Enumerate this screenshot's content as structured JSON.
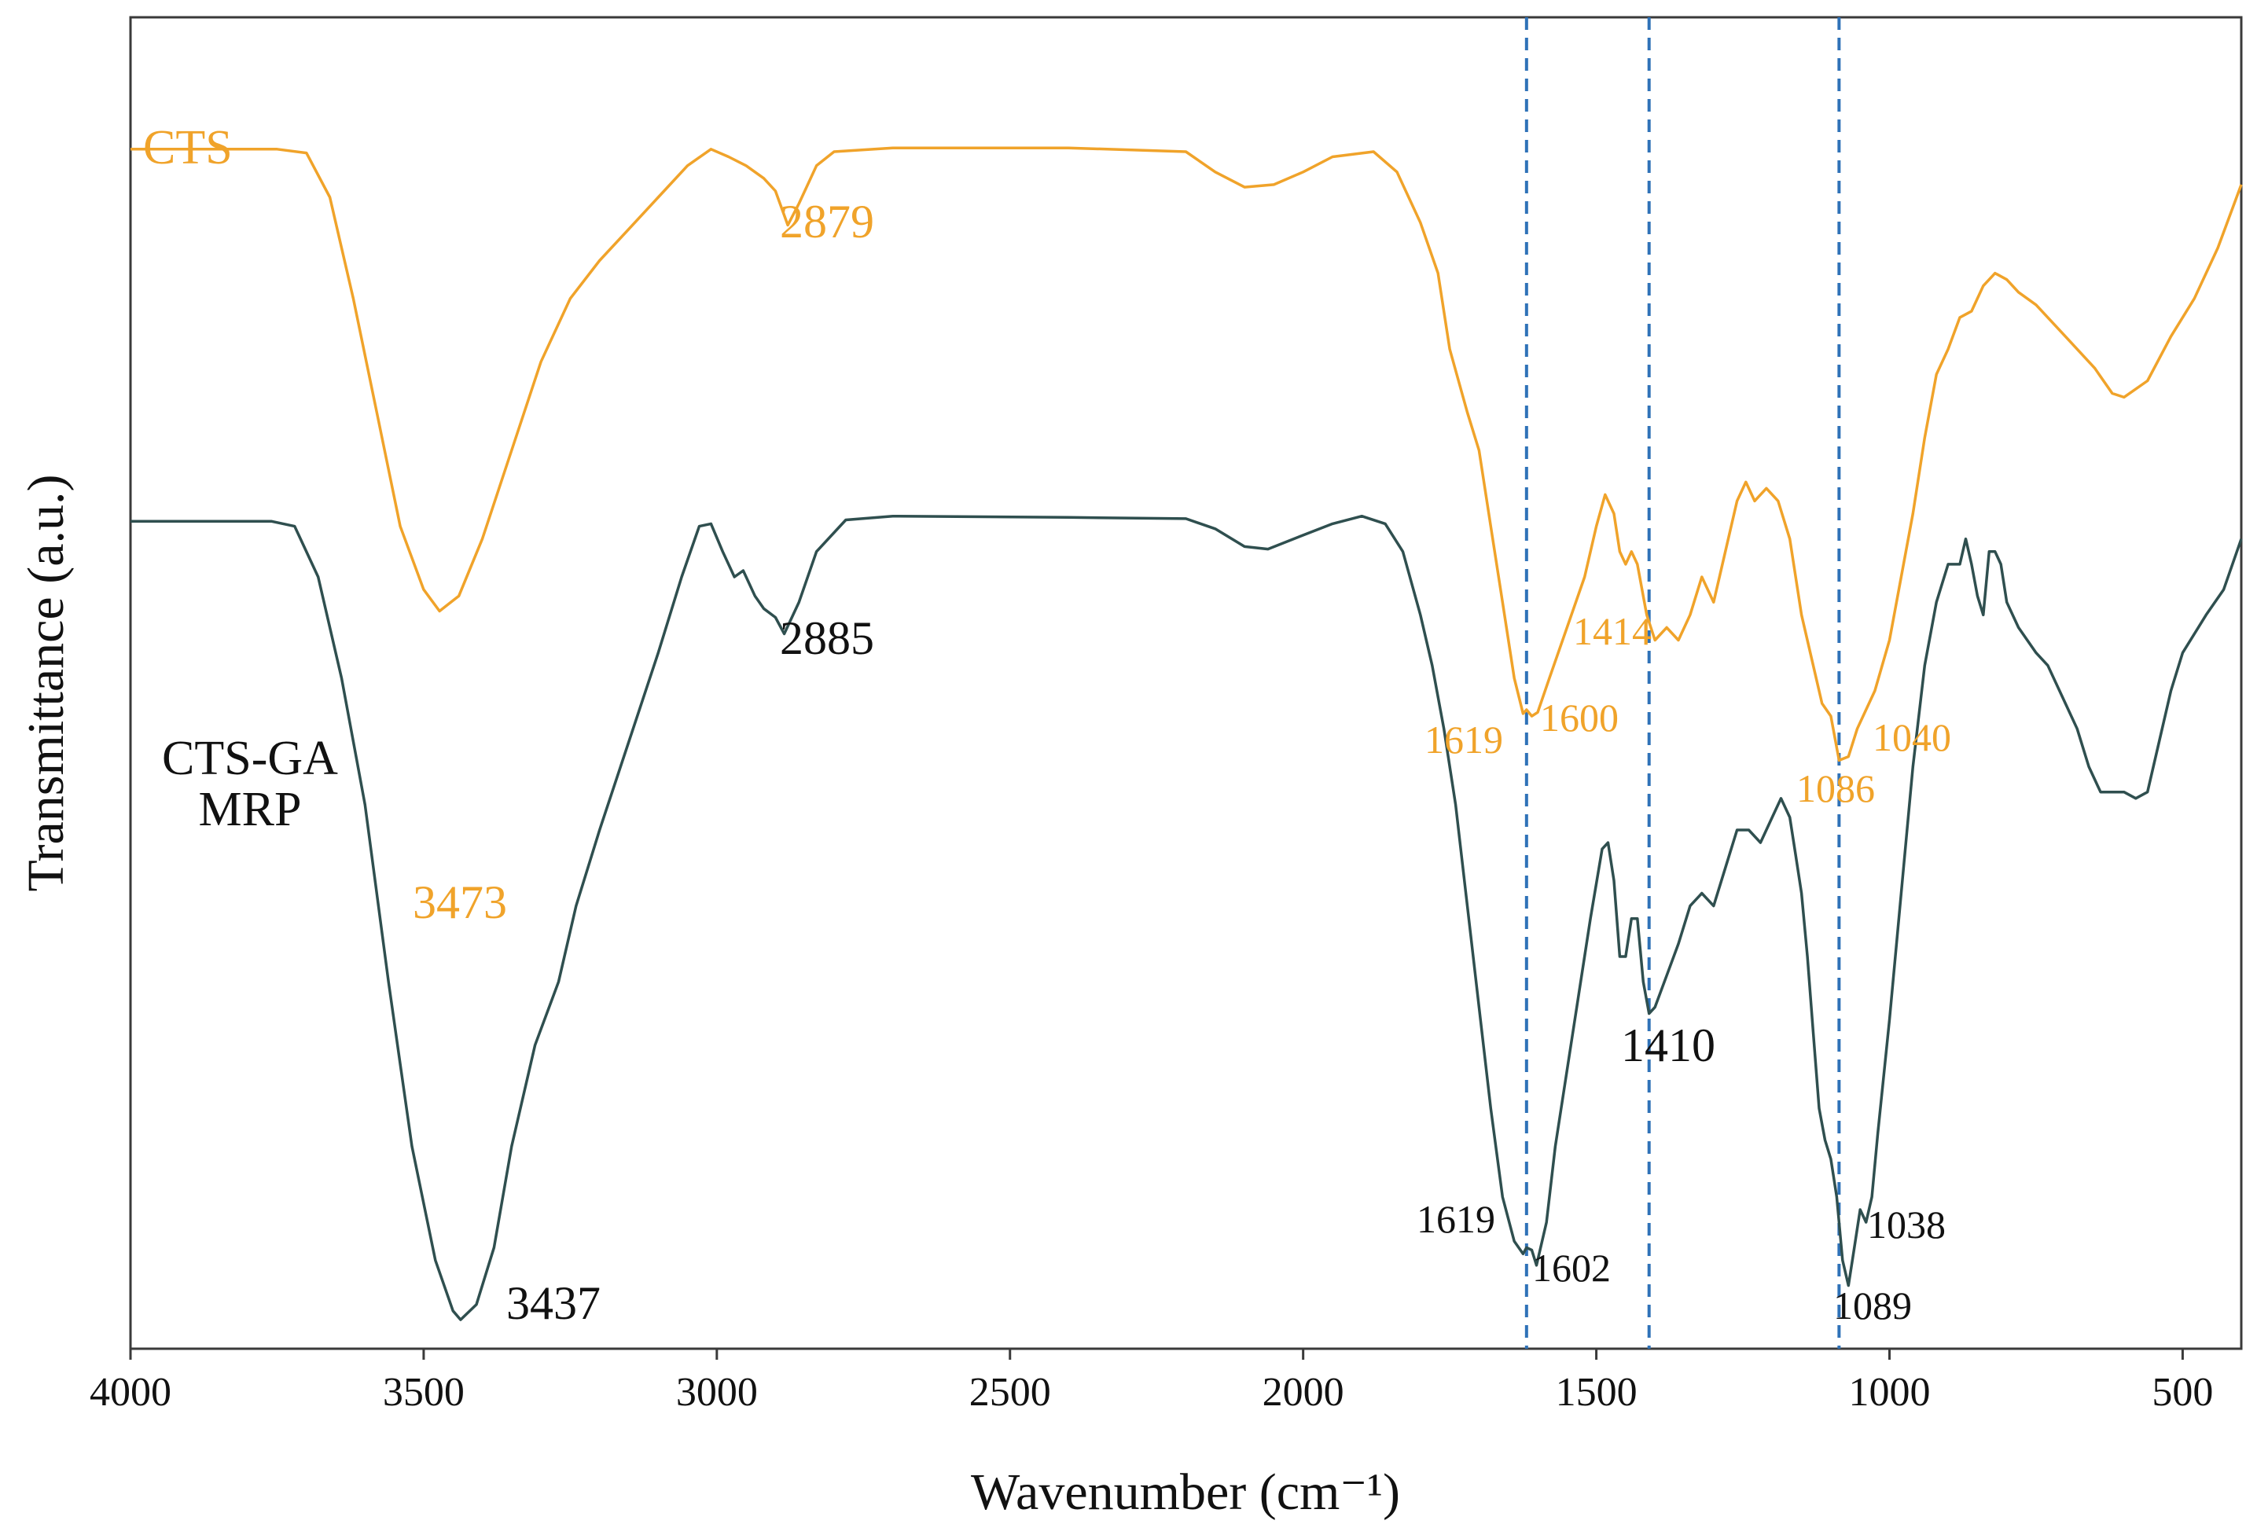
{
  "colors": {
    "cts": "#f0a32a",
    "ctsga": "#2f4f4f",
    "dashed": "#2f72b8",
    "axis": "#3a3a3a"
  },
  "chart_data": {
    "type": "line",
    "title": "",
    "xlabel": "Wavenumber (cm⁻¹)",
    "ylabel": "Transmittance (a.u.)",
    "xlim": [
      4000,
      400
    ],
    "ylim": [
      0,
      100
    ],
    "x_ticks": [
      "4000",
      "3500",
      "3000",
      "2500",
      "2000",
      "1500",
      "1000",
      "500"
    ],
    "x_tick_values": [
      4000,
      3500,
      3000,
      2500,
      2000,
      1500,
      1000,
      500
    ],
    "reference_lines": [
      1619,
      1410,
      1086
    ],
    "series": [
      {
        "name": "CTS",
        "label": "CTS",
        "color": "#f0a32a",
        "points": [
          [
            4000,
            93.8
          ],
          [
            3750,
            93.8
          ],
          [
            3700,
            93.5
          ],
          [
            3660,
            90
          ],
          [
            3620,
            82
          ],
          [
            3580,
            73
          ],
          [
            3540,
            64
          ],
          [
            3500,
            59
          ],
          [
            3473,
            57.3
          ],
          [
            3440,
            58.5
          ],
          [
            3400,
            63
          ],
          [
            3350,
            70
          ],
          [
            3300,
            77
          ],
          [
            3250,
            82
          ],
          [
            3200,
            85
          ],
          [
            3150,
            87.5
          ],
          [
            3100,
            90
          ],
          [
            3050,
            92.5
          ],
          [
            3010,
            93.8
          ],
          [
            2980,
            93.2
          ],
          [
            2950,
            92.5
          ],
          [
            2920,
            91.5
          ],
          [
            2900,
            90.5
          ],
          [
            2879,
            87.8
          ],
          [
            2860,
            89.5
          ],
          [
            2830,
            92.5
          ],
          [
            2800,
            93.6
          ],
          [
            2700,
            93.9
          ],
          [
            2400,
            93.9
          ],
          [
            2200,
            93.6
          ],
          [
            2150,
            92
          ],
          [
            2100,
            90.8
          ],
          [
            2050,
            91
          ],
          [
            2000,
            92
          ],
          [
            1950,
            93.2
          ],
          [
            1880,
            93.6
          ],
          [
            1840,
            92
          ],
          [
            1800,
            88
          ],
          [
            1770,
            84
          ],
          [
            1750,
            78
          ],
          [
            1720,
            73
          ],
          [
            1700,
            70
          ],
          [
            1680,
            64
          ],
          [
            1660,
            58
          ],
          [
            1640,
            52
          ],
          [
            1625,
            49.2
          ],
          [
            1619,
            49.5
          ],
          [
            1610,
            49
          ],
          [
            1600,
            49.3
          ],
          [
            1580,
            52
          ],
          [
            1550,
            56
          ],
          [
            1520,
            60
          ],
          [
            1500,
            64
          ],
          [
            1485,
            66.5
          ],
          [
            1470,
            65
          ],
          [
            1460,
            62
          ],
          [
            1450,
            61
          ],
          [
            1440,
            62
          ],
          [
            1430,
            61
          ],
          [
            1414,
            57
          ],
          [
            1400,
            55
          ],
          [
            1380,
            56
          ],
          [
            1360,
            55
          ],
          [
            1340,
            57
          ],
          [
            1320,
            60
          ],
          [
            1300,
            58
          ],
          [
            1280,
            62
          ],
          [
            1260,
            66
          ],
          [
            1245,
            67.5
          ],
          [
            1230,
            66
          ],
          [
            1210,
            67
          ],
          [
            1190,
            66
          ],
          [
            1170,
            63
          ],
          [
            1150,
            57
          ],
          [
            1130,
            53
          ],
          [
            1115,
            50
          ],
          [
            1100,
            49
          ],
          [
            1086,
            45.5
          ],
          [
            1070,
            45.8
          ],
          [
            1055,
            48
          ],
          [
            1040,
            49.5
          ],
          [
            1025,
            51
          ],
          [
            1000,
            55
          ],
          [
            980,
            60
          ],
          [
            960,
            65
          ],
          [
            940,
            71
          ],
          [
            920,
            76
          ],
          [
            900,
            78
          ],
          [
            880,
            80.5
          ],
          [
            860,
            81
          ],
          [
            840,
            83
          ],
          [
            820,
            84
          ],
          [
            800,
            83.5
          ],
          [
            780,
            82.5
          ],
          [
            750,
            81.5
          ],
          [
            700,
            79
          ],
          [
            650,
            76.5
          ],
          [
            620,
            74.5
          ],
          [
            600,
            74.2
          ],
          [
            560,
            75.5
          ],
          [
            520,
            79
          ],
          [
            480,
            82
          ],
          [
            440,
            86
          ],
          [
            400,
            91
          ]
        ]
      },
      {
        "name": "CTS-GA MRP",
        "label_line1": "CTS-GA",
        "label_line2": "MRP",
        "color": "#2f4f4f",
        "points": [
          [
            4000,
            64.4
          ],
          [
            3760,
            64.4
          ],
          [
            3720,
            64
          ],
          [
            3680,
            60
          ],
          [
            3640,
            52
          ],
          [
            3600,
            42
          ],
          [
            3560,
            28
          ],
          [
            3520,
            15
          ],
          [
            3480,
            6
          ],
          [
            3450,
            2
          ],
          [
            3437,
            1.3
          ],
          [
            3410,
            2.5
          ],
          [
            3380,
            7
          ],
          [
            3350,
            15
          ],
          [
            3310,
            23
          ],
          [
            3270,
            28
          ],
          [
            3240,
            34
          ],
          [
            3200,
            40
          ],
          [
            3150,
            47
          ],
          [
            3100,
            54
          ],
          [
            3060,
            60
          ],
          [
            3030,
            64
          ],
          [
            3010,
            64.2
          ],
          [
            2990,
            62
          ],
          [
            2970,
            60
          ],
          [
            2955,
            60.5
          ],
          [
            2935,
            58.5
          ],
          [
            2920,
            57.5
          ],
          [
            2900,
            56.8
          ],
          [
            2885,
            55.5
          ],
          [
            2860,
            58
          ],
          [
            2830,
            62
          ],
          [
            2780,
            64.5
          ],
          [
            2700,
            64.8
          ],
          [
            2400,
            64.7
          ],
          [
            2200,
            64.6
          ],
          [
            2150,
            63.8
          ],
          [
            2100,
            62.4
          ],
          [
            2060,
            62.2
          ],
          [
            2000,
            63.3
          ],
          [
            1950,
            64.2
          ],
          [
            1900,
            64.8
          ],
          [
            1860,
            64.2
          ],
          [
            1830,
            62
          ],
          [
            1800,
            57
          ],
          [
            1780,
            53
          ],
          [
            1760,
            48
          ],
          [
            1740,
            42
          ],
          [
            1720,
            34
          ],
          [
            1700,
            26
          ],
          [
            1680,
            18
          ],
          [
            1660,
            11
          ],
          [
            1640,
            7.5
          ],
          [
            1625,
            6.5
          ],
          [
            1619,
            7
          ],
          [
            1610,
            6.8
          ],
          [
            1602,
            5.6
          ],
          [
            1585,
            9
          ],
          [
            1570,
            15
          ],
          [
            1550,
            21
          ],
          [
            1530,
            27
          ],
          [
            1510,
            33
          ],
          [
            1490,
            38.5
          ],
          [
            1480,
            39
          ],
          [
            1470,
            36
          ],
          [
            1460,
            30
          ],
          [
            1450,
            30
          ],
          [
            1440,
            33
          ],
          [
            1430,
            33
          ],
          [
            1420,
            28
          ],
          [
            1410,
            25.5
          ],
          [
            1400,
            26
          ],
          [
            1380,
            28.5
          ],
          [
            1360,
            31
          ],
          [
            1340,
            34
          ],
          [
            1320,
            35
          ],
          [
            1300,
            34
          ],
          [
            1280,
            37
          ],
          [
            1260,
            40
          ],
          [
            1240,
            40
          ],
          [
            1220,
            39
          ],
          [
            1200,
            41
          ],
          [
            1185,
            42.5
          ],
          [
            1170,
            41
          ],
          [
            1160,
            38
          ],
          [
            1150,
            35
          ],
          [
            1140,
            30
          ],
          [
            1130,
            24
          ],
          [
            1120,
            18
          ],
          [
            1110,
            15.5
          ],
          [
            1100,
            14
          ],
          [
            1090,
            11
          ],
          [
            1080,
            6
          ],
          [
            1070,
            4
          ],
          [
            1060,
            7
          ],
          [
            1050,
            10
          ],
          [
            1040,
            9
          ],
          [
            1030,
            11
          ],
          [
            1020,
            16
          ],
          [
            1000,
            25
          ],
          [
            980,
            35
          ],
          [
            960,
            45
          ],
          [
            940,
            53
          ],
          [
            920,
            58
          ],
          [
            900,
            61
          ],
          [
            880,
            61
          ],
          [
            870,
            63
          ],
          [
            860,
            61
          ],
          [
            850,
            58.5
          ],
          [
            840,
            57
          ],
          [
            830,
            62
          ],
          [
            820,
            62
          ],
          [
            810,
            61
          ],
          [
            800,
            58
          ],
          [
            780,
            56
          ],
          [
            750,
            54
          ],
          [
            730,
            53
          ],
          [
            700,
            50
          ],
          [
            680,
            48
          ],
          [
            660,
            45
          ],
          [
            640,
            43
          ],
          [
            620,
            43
          ],
          [
            600,
            43
          ],
          [
            580,
            42.5
          ],
          [
            560,
            43
          ],
          [
            540,
            47
          ],
          [
            520,
            51
          ],
          [
            500,
            54
          ],
          [
            460,
            57
          ],
          [
            430,
            59
          ],
          [
            400,
            63
          ]
        ]
      }
    ],
    "annotations": [
      {
        "text": "3473",
        "series": "CTS"
      },
      {
        "text": "2879",
        "series": "CTS"
      },
      {
        "text": "1619",
        "series": "CTS"
      },
      {
        "text": "1600",
        "series": "CTS"
      },
      {
        "text": "1414",
        "series": "CTS"
      },
      {
        "text": "1086",
        "series": "CTS"
      },
      {
        "text": "1040",
        "series": "CTS"
      },
      {
        "text": "3437",
        "series": "CTS-GA MRP"
      },
      {
        "text": "2885",
        "series": "CTS-GA MRP"
      },
      {
        "text": "1410",
        "series": "CTS-GA MRP"
      },
      {
        "text": "1619",
        "series": "CTS-GA MRP"
      },
      {
        "text": "1602",
        "series": "CTS-GA MRP"
      },
      {
        "text": "1089",
        "series": "CTS-GA MRP"
      },
      {
        "text": "1038",
        "series": "CTS-GA MRP"
      }
    ]
  }
}
